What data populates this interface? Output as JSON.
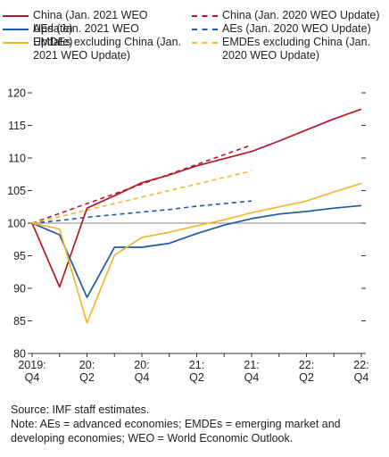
{
  "chart_data": {
    "type": "line",
    "title": "",
    "xlabel": "",
    "ylabel": "",
    "ylim": [
      80,
      120
    ],
    "yticks": [
      80,
      85,
      90,
      95,
      100,
      105,
      110,
      115,
      120
    ],
    "x_tick_labels": [
      {
        "line1": "2019:",
        "line2": "Q4"
      },
      {
        "line1": "20:",
        "line2": "Q2"
      },
      {
        "line1": "20:",
        "line2": "Q4"
      },
      {
        "line1": "21:",
        "line2": "Q2"
      },
      {
        "line1": "21:",
        "line2": "Q4"
      },
      {
        "line1": "22:",
        "line2": "Q2"
      },
      {
        "line1": "22:",
        "line2": "Q4"
      }
    ],
    "quarters": [
      "2019Q4",
      "2020Q1",
      "2020Q2",
      "2020Q3",
      "2020Q4",
      "2021Q1",
      "2021Q2",
      "2021Q3",
      "2021Q4",
      "2022Q1",
      "2022Q2",
      "2022Q3",
      "2022Q4"
    ],
    "reference_line": 100,
    "legend_position": "top",
    "series": [
      {
        "name": "China (Jan. 2021 WEO Update)",
        "color": "#b5182b",
        "style": "solid",
        "values": [
          100,
          90.2,
          102.3,
          104.2,
          106.2,
          107.4,
          108.8,
          109.9,
          111.0,
          112.6,
          114.3,
          116.0,
          117.5
        ]
      },
      {
        "name": "China (Jan. 2020 WEO Update)",
        "color": "#b5182b",
        "style": "dashed",
        "values": [
          100,
          101.5,
          103.0,
          104.5,
          106.0,
          107.5,
          109.0,
          110.5,
          112.0,
          null,
          null,
          null,
          null
        ]
      },
      {
        "name": "AEs (Jan. 2021 WEO Update)",
        "color": "#1f5aa6",
        "style": "solid",
        "values": [
          100,
          98.2,
          88.6,
          96.3,
          96.3,
          96.9,
          98.4,
          99.7,
          100.7,
          101.4,
          101.8,
          102.3,
          102.7
        ]
      },
      {
        "name": "AEs (Jan. 2020 WEO Update)",
        "color": "#1f5aa6",
        "style": "dashed",
        "values": [
          100,
          100.4,
          100.9,
          101.3,
          101.7,
          102.1,
          102.6,
          103.0,
          103.4,
          null,
          null,
          null,
          null
        ]
      },
      {
        "name": "EMDEs excluding China (Jan. 2021 WEO Update)",
        "color": "#f2b630",
        "style": "solid",
        "values": [
          100,
          99.1,
          84.7,
          95.1,
          97.8,
          98.6,
          99.6,
          100.5,
          101.6,
          102.5,
          103.4,
          104.8,
          106.1
        ]
      },
      {
        "name": "EMDEs excluding China (Jan. 2020 WEO Update)",
        "color": "#f2b630",
        "style": "dashed",
        "values": [
          100,
          101.0,
          102.0,
          103.0,
          104.0,
          105.0,
          106.0,
          107.0,
          108.0,
          null,
          null,
          null,
          null
        ]
      }
    ]
  },
  "legend": {
    "items": [
      {
        "label": "China (Jan. 2021 WEO Update)",
        "color": "#b5182b",
        "style": "solid"
      },
      {
        "label": "China (Jan. 2020 WEO Update)",
        "color": "#b5182b",
        "style": "dashed"
      },
      {
        "label": "AEs (Jan. 2021 WEO Update)",
        "color": "#1f5aa6",
        "style": "solid"
      },
      {
        "label": "AEs (Jan. 2020 WEO Update)",
        "color": "#1f5aa6",
        "style": "dashed"
      },
      {
        "label": "EMDEs excluding China (Jan. 2021 WEO Update)",
        "color": "#f2b630",
        "style": "solid"
      },
      {
        "label": "EMDEs excluding China (Jan. 2020 WEO Update)",
        "color": "#f2b630",
        "style": "dashed"
      }
    ]
  },
  "notes": {
    "source": "Source: IMF staff estimates.",
    "note": "Note: AEs = advanced economies; EMDEs = emerging market and developing economies; WEO = World Economic Outlook."
  }
}
